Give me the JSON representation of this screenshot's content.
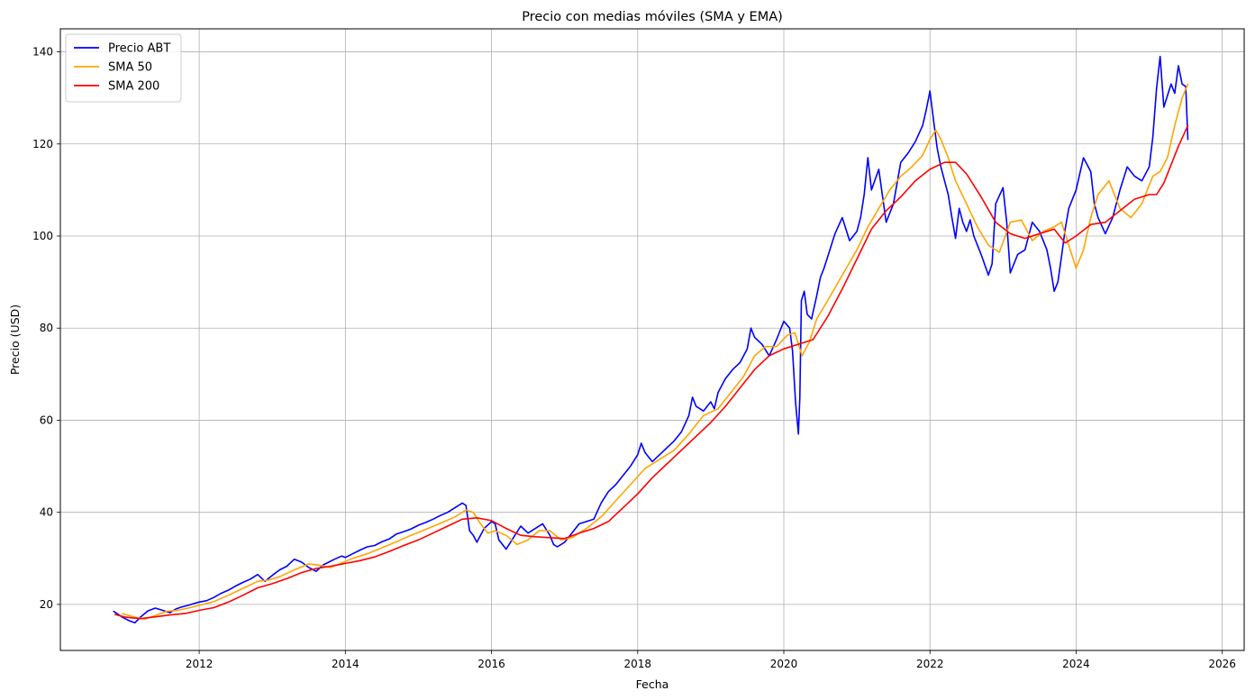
{
  "chart_data": {
    "type": "line",
    "title": "Precio con medias móviles (SMA y EMA)",
    "xlabel": "Fecha",
    "ylabel": "Precio (USD)",
    "xlim": [
      2010.1,
      2026.3
    ],
    "ylim": [
      10,
      145
    ],
    "x_ticks": [
      2012,
      2014,
      2016,
      2018,
      2020,
      2022,
      2024,
      2026
    ],
    "y_ticks": [
      20,
      40,
      60,
      80,
      100,
      120,
      140
    ],
    "grid": true,
    "legend_position": "upper-left",
    "series": [
      {
        "name": "Precio ABT",
        "color": "#0000ff",
        "x": [
          2010.83,
          2010.95,
          2011.05,
          2011.12,
          2011.2,
          2011.3,
          2011.4,
          2011.5,
          2011.6,
          2011.68,
          2011.75,
          2011.85,
          2011.95,
          2012.0,
          2012.1,
          2012.2,
          2012.3,
          2012.4,
          2012.5,
          2012.6,
          2012.7,
          2012.8,
          2012.9,
          2013.0,
          2013.1,
          2013.2,
          2013.3,
          2013.4,
          2013.5,
          2013.6,
          2013.7,
          2013.75,
          2013.85,
          2013.95,
          2014.0,
          2014.1,
          2014.2,
          2014.3,
          2014.4,
          2014.5,
          2014.6,
          2014.7,
          2014.8,
          2014.9,
          2015.0,
          2015.1,
          2015.2,
          2015.3,
          2015.4,
          2015.5,
          2015.6,
          2015.65,
          2015.7,
          2015.75,
          2015.8,
          2015.9,
          2016.0,
          2016.05,
          2016.1,
          2016.2,
          2016.3,
          2016.4,
          2016.5,
          2016.6,
          2016.7,
          2016.8,
          2016.85,
          2016.9,
          2017.0,
          2017.1,
          2017.2,
          2017.3,
          2017.4,
          2017.5,
          2017.6,
          2017.7,
          2017.8,
          2017.9,
          2018.0,
          2018.05,
          2018.1,
          2018.2,
          2018.3,
          2018.4,
          2018.5,
          2018.6,
          2018.7,
          2018.75,
          2018.8,
          2018.9,
          2019.0,
          2019.05,
          2019.1,
          2019.2,
          2019.3,
          2019.4,
          2019.5,
          2019.55,
          2019.6,
          2019.7,
          2019.8,
          2019.9,
          2020.0,
          2020.08,
          2020.12,
          2020.16,
          2020.2,
          2020.22,
          2020.24,
          2020.28,
          2020.32,
          2020.38,
          2020.45,
          2020.5,
          2020.55,
          2020.6,
          2020.7,
          2020.8,
          2020.9,
          2021.0,
          2021.05,
          2021.1,
          2021.15,
          2021.2,
          2021.3,
          2021.4,
          2021.5,
          2021.6,
          2021.7,
          2021.8,
          2021.9,
          2021.95,
          2022.0,
          2022.05,
          2022.1,
          2022.15,
          2022.2,
          2022.25,
          2022.3,
          2022.35,
          2022.4,
          2022.45,
          2022.5,
          2022.55,
          2022.6,
          2022.7,
          2022.8,
          2022.85,
          2022.9,
          2023.0,
          2023.05,
          2023.1,
          2023.2,
          2023.3,
          2023.4,
          2023.5,
          2023.6,
          2023.65,
          2023.7,
          2023.75,
          2023.8,
          2023.85,
          2023.9,
          2024.0,
          2024.1,
          2024.2,
          2024.25,
          2024.3,
          2024.4,
          2024.5,
          2024.6,
          2024.7,
          2024.8,
          2024.9,
          2025.0,
          2025.05,
          2025.1,
          2025.15,
          2025.2,
          2025.3,
          2025.35,
          2025.4,
          2025.45,
          2025.5,
          2025.53
        ],
        "y": [
          18.5,
          17.2,
          16.4,
          16.0,
          17.3,
          18.6,
          19.2,
          18.7,
          18.2,
          19.0,
          19.4,
          19.8,
          20.3,
          20.5,
          20.8,
          21.5,
          22.4,
          23.1,
          24.0,
          24.8,
          25.5,
          26.5,
          25.0,
          26.3,
          27.5,
          28.3,
          29.8,
          29.2,
          28.0,
          27.2,
          28.6,
          29.0,
          29.8,
          30.5,
          30.2,
          31.0,
          31.8,
          32.5,
          32.8,
          33.6,
          34.2,
          35.3,
          35.8,
          36.4,
          37.2,
          37.8,
          38.5,
          39.3,
          40.0,
          41.0,
          42.0,
          41.5,
          36.0,
          35.0,
          33.5,
          36.5,
          38.0,
          37.5,
          34.0,
          32.0,
          34.5,
          37.0,
          35.5,
          36.5,
          37.5,
          35.0,
          33.0,
          32.5,
          33.5,
          35.5,
          37.5,
          38.0,
          38.5,
          42.0,
          44.5,
          46.0,
          48.0,
          50.0,
          52.5,
          55.0,
          53.0,
          51.0,
          52.5,
          54.0,
          55.5,
          57.5,
          61.0,
          65.0,
          63.0,
          62.0,
          64.0,
          62.5,
          66.0,
          69.0,
          71.0,
          72.5,
          75.5,
          80.0,
          78.0,
          76.5,
          74.0,
          77.5,
          81.5,
          80.0,
          75.0,
          64.0,
          57.0,
          65.0,
          86.0,
          88.0,
          83.0,
          82.0,
          87.0,
          91.0,
          93.0,
          95.5,
          100.5,
          104.0,
          99.0,
          101.0,
          104.0,
          109.0,
          117.0,
          110.0,
          114.5,
          103.0,
          107.0,
          116.0,
          118.0,
          120.5,
          124.0,
          127.5,
          131.5,
          125.0,
          119.0,
          115.0,
          112.0,
          109.0,
          104.0,
          99.5,
          106.0,
          103.0,
          101.0,
          103.5,
          100.0,
          96.0,
          91.5,
          94.0,
          107.0,
          110.5,
          103.0,
          92.0,
          96.0,
          97.0,
          103.0,
          101.0,
          97.0,
          93.0,
          88.0,
          90.0,
          95.5,
          101.5,
          106.0,
          110.0,
          117.0,
          114.0,
          107.0,
          104.0,
          100.5,
          104.0,
          110.0,
          115.0,
          113.0,
          112.0,
          115.0,
          121.5,
          132.0,
          139.0,
          128.0,
          133.0,
          131.0,
          137.0,
          133.0,
          132.5,
          121.0
        ]
      },
      {
        "name": "SMA 50",
        "color": "#ffa500",
        "x": [
          2010.95,
          2011.1,
          2011.25,
          2011.4,
          2011.55,
          2011.7,
          2011.85,
          2012.0,
          2012.2,
          2012.4,
          2012.6,
          2012.8,
          2012.95,
          2013.1,
          2013.3,
          2013.5,
          2013.65,
          2013.8,
          2013.95,
          2014.1,
          2014.3,
          2014.5,
          2014.7,
          2014.9,
          2015.1,
          2015.3,
          2015.5,
          2015.65,
          2015.75,
          2015.85,
          2015.95,
          2016.05,
          2016.2,
          2016.35,
          2016.5,
          2016.65,
          2016.8,
          2016.95,
          2017.1,
          2017.3,
          2017.5,
          2017.7,
          2017.9,
          2018.1,
          2018.3,
          2018.5,
          2018.7,
          2018.9,
          2019.1,
          2019.3,
          2019.45,
          2019.6,
          2019.75,
          2019.9,
          2020.05,
          2020.15,
          2020.25,
          2020.35,
          2020.45,
          2020.6,
          2020.8,
          2021.0,
          2021.15,
          2021.3,
          2021.45,
          2021.6,
          2021.75,
          2021.9,
          2022.0,
          2022.08,
          2022.15,
          2022.25,
          2022.35,
          2022.5,
          2022.65,
          2022.8,
          2022.95,
          2023.1,
          2023.25,
          2023.4,
          2023.55,
          2023.7,
          2023.8,
          2023.9,
          2024.0,
          2024.1,
          2024.2,
          2024.3,
          2024.45,
          2024.6,
          2024.75,
          2024.9,
          2025.05,
          2025.15,
          2025.25,
          2025.35,
          2025.45,
          2025.53
        ],
        "y": [
          18.0,
          17.3,
          16.8,
          17.6,
          18.5,
          18.7,
          19.2,
          19.8,
          20.6,
          22.0,
          23.5,
          25.0,
          25.3,
          26.0,
          27.5,
          28.8,
          28.5,
          28.0,
          29.0,
          30.0,
          31.0,
          32.3,
          33.6,
          35.0,
          36.3,
          37.6,
          39.0,
          40.5,
          40.0,
          37.5,
          35.5,
          36.0,
          35.0,
          33.0,
          34.0,
          36.0,
          36.0,
          34.0,
          34.5,
          36.5,
          39.0,
          42.5,
          46.0,
          49.5,
          51.5,
          53.5,
          57.0,
          61.0,
          62.5,
          66.5,
          69.5,
          74.0,
          76.0,
          76.0,
          78.5,
          79.0,
          74.0,
          77.0,
          82.0,
          86.0,
          91.5,
          97.0,
          102.0,
          106.0,
          110.0,
          113.0,
          115.0,
          117.5,
          121.0,
          123.0,
          121.0,
          117.0,
          112.0,
          107.0,
          102.0,
          98.0,
          96.5,
          103.0,
          103.5,
          99.0,
          101.0,
          102.0,
          103.0,
          98.0,
          93.0,
          97.0,
          104.0,
          109.0,
          112.0,
          106.0,
          104.0,
          107.0,
          113.0,
          114.0,
          117.0,
          124.0,
          130.0,
          133.0
        ]
      },
      {
        "name": "SMA 200",
        "color": "#ff0000",
        "x": [
          2010.85,
          2011.0,
          2011.2,
          2011.4,
          2011.6,
          2011.8,
          2012.0,
          2012.2,
          2012.4,
          2012.6,
          2012.8,
          2013.0,
          2013.2,
          2013.4,
          2013.6,
          2013.8,
          2014.0,
          2014.2,
          2014.4,
          2014.6,
          2014.8,
          2015.0,
          2015.2,
          2015.4,
          2015.6,
          2015.8,
          2016.0,
          2016.2,
          2016.4,
          2016.6,
          2016.8,
          2017.0,
          2017.2,
          2017.4,
          2017.6,
          2017.8,
          2018.0,
          2018.2,
          2018.4,
          2018.6,
          2018.8,
          2019.0,
          2019.2,
          2019.4,
          2019.6,
          2019.8,
          2020.0,
          2020.2,
          2020.4,
          2020.6,
          2020.8,
          2021.0,
          2021.2,
          2021.4,
          2021.6,
          2021.8,
          2022.0,
          2022.2,
          2022.35,
          2022.5,
          2022.7,
          2022.9,
          2023.1,
          2023.3,
          2023.5,
          2023.7,
          2023.85,
          2024.0,
          2024.2,
          2024.4,
          2024.6,
          2024.8,
          2025.0,
          2025.1,
          2025.2,
          2025.3,
          2025.4,
          2025.53
        ],
        "y": [
          17.8,
          17.2,
          16.9,
          17.3,
          17.7,
          18.0,
          18.7,
          19.3,
          20.5,
          22.0,
          23.6,
          24.5,
          25.6,
          26.9,
          27.8,
          28.3,
          28.9,
          29.5,
          30.3,
          31.5,
          32.8,
          34.0,
          35.5,
          37.0,
          38.5,
          38.8,
          38.2,
          36.5,
          35.0,
          34.7,
          34.5,
          34.3,
          35.5,
          36.5,
          38.0,
          41.0,
          44.0,
          47.5,
          50.5,
          53.5,
          56.5,
          59.5,
          63.0,
          67.0,
          71.0,
          74.0,
          75.5,
          76.5,
          77.5,
          82.5,
          88.5,
          95.0,
          101.5,
          105.5,
          108.5,
          112.0,
          114.5,
          116.0,
          116.0,
          113.5,
          108.5,
          103.0,
          100.5,
          99.5,
          100.5,
          101.5,
          98.5,
          100.0,
          102.5,
          103.0,
          105.5,
          108.0,
          109.0,
          109.0,
          111.5,
          115.5,
          119.5,
          124.0
        ]
      }
    ]
  }
}
